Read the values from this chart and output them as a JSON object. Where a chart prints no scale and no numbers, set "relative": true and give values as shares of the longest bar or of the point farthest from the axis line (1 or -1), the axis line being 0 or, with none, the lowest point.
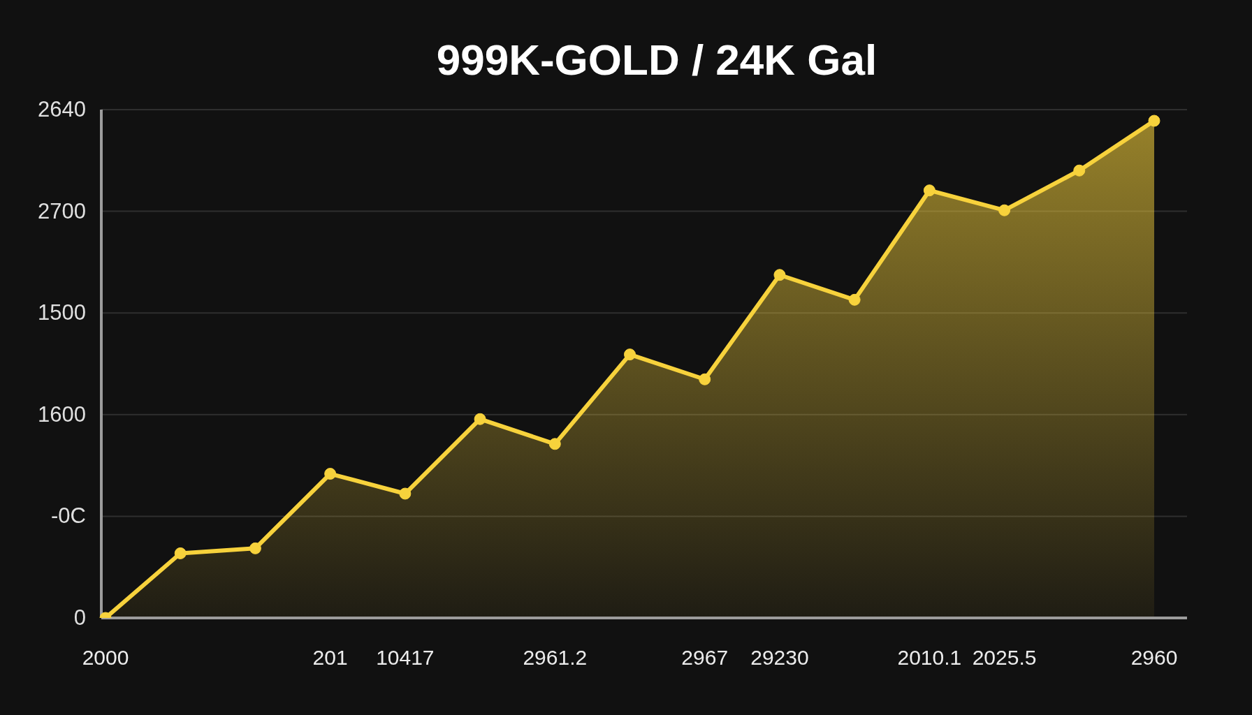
{
  "chart_data": {
    "type": "area",
    "title": "999K-GOLD / 24K Gal",
    "categories": [
      "2000",
      null,
      null,
      "201",
      "10417",
      null,
      "2961.2",
      null,
      "2967",
      "29230",
      null,
      "2010.1",
      "2025.5",
      null,
      "2960"
    ],
    "series": [
      {
        "color": "#f7d23c",
        "values": [
          0,
          0.13,
          0.14,
          0.29,
          0.25,
          0.4,
          0.35,
          0.53,
          0.48,
          0.69,
          0.64,
          0.86,
          0.82,
          0.9,
          1
        ]
      }
    ],
    "relative": true,
    "annotations": [
      "2640",
      "2700",
      "1500",
      "1600",
      "-0C",
      "0"
    ],
    "grid": "y",
    "marker": "circle",
    "line_style": "solid"
  }
}
